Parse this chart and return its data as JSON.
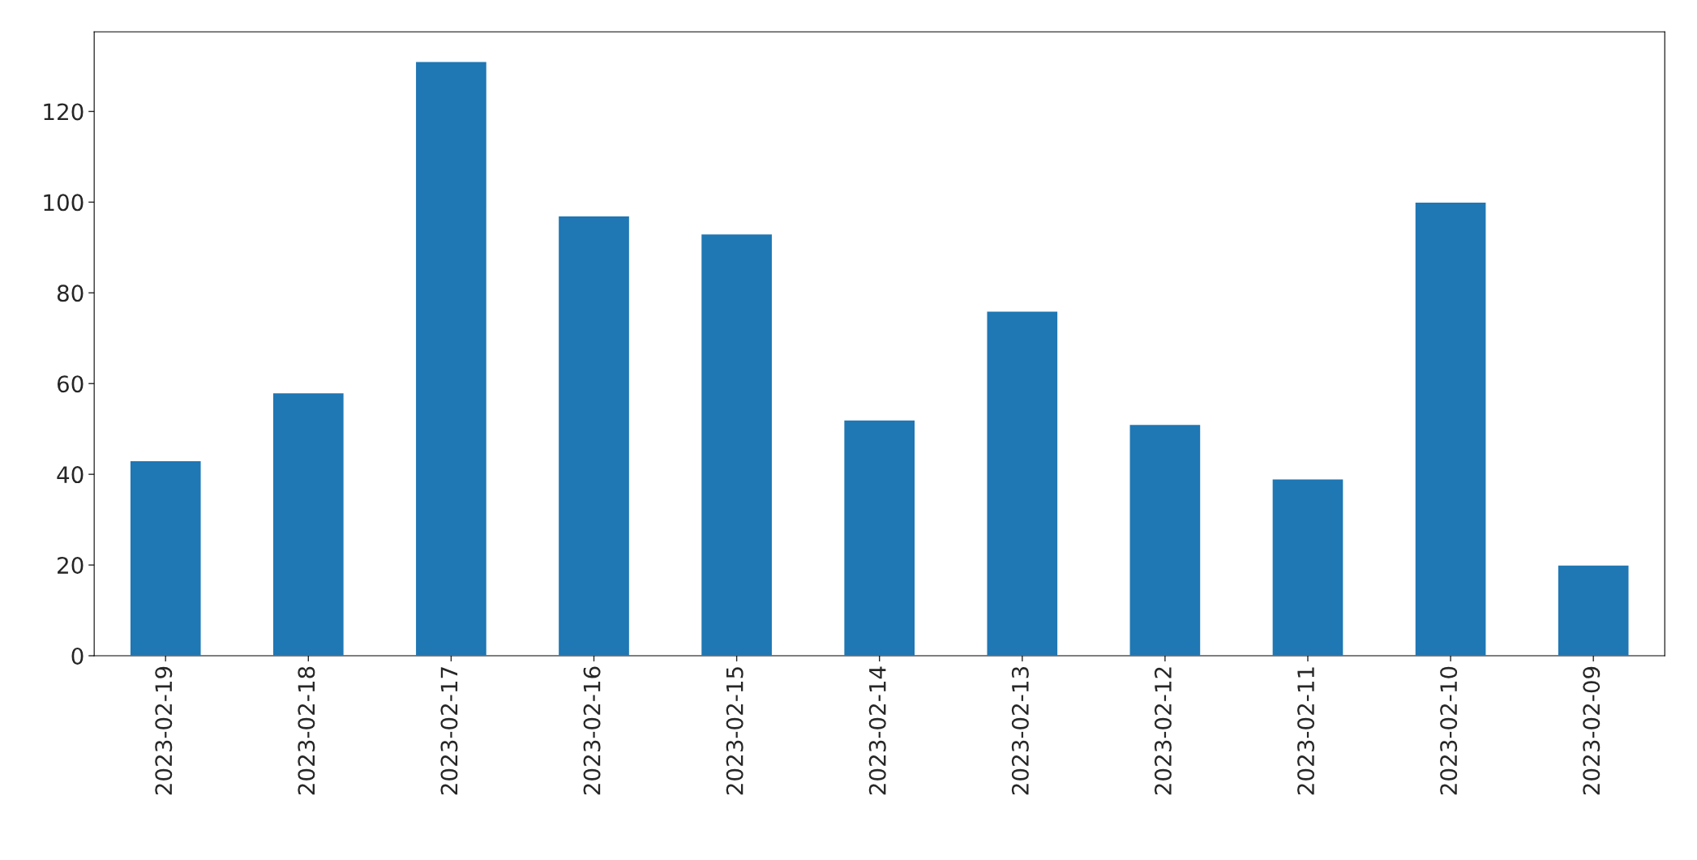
{
  "chart_data": {
    "type": "bar",
    "categories": [
      "2023-02-19",
      "2023-02-18",
      "2023-02-17",
      "2023-02-16",
      "2023-02-15",
      "2023-02-14",
      "2023-02-13",
      "2023-02-12",
      "2023-02-11",
      "2023-02-10",
      "2023-02-09"
    ],
    "values": [
      43,
      58,
      131,
      97,
      93,
      52,
      76,
      51,
      39,
      100,
      20
    ],
    "color": "#1f77b4",
    "ylim": [
      0,
      137.55
    ],
    "yticks": [
      0,
      20,
      40,
      60,
      80,
      100,
      120
    ],
    "grid": false
  }
}
